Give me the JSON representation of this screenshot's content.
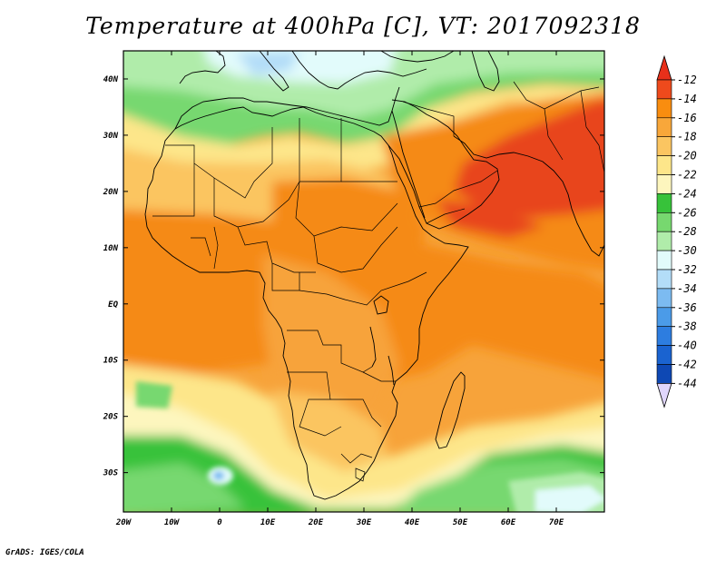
{
  "title": "Temperature at 400hPa [C], VT: 2017092318",
  "credit": "GrADS: IGES/COLA",
  "lat_labels": [
    "40N",
    "30N",
    "20N",
    "10N",
    "EQ",
    "10S",
    "20S",
    "30S"
  ],
  "lon_labels": [
    "20W",
    "10W",
    "0",
    "10E",
    "20E",
    "30E",
    "40E",
    "50E",
    "60E",
    "70E"
  ],
  "colorbar": {
    "labels": [
      "-12",
      "-14",
      "-16",
      "-18",
      "-20",
      "-22",
      "-24",
      "-26",
      "-28",
      "-30",
      "-32",
      "-34",
      "-36",
      "-38",
      "-40",
      "-42",
      "-44"
    ],
    "colors": [
      "#ee4a1c",
      "#f98d0f",
      "#f8a73a",
      "#fbc561",
      "#fde68a",
      "#fdf6be",
      "#37c23a",
      "#77d86f",
      "#b0ecaa",
      "#e2fbfb",
      "#b3ddf8",
      "#7cbbf1",
      "#4b9be8",
      "#2d7de0",
      "#1a63d0",
      "#0e48b4",
      "#0a2486"
    ],
    "top_color": "#e8301a",
    "bottom_color": "#e0d6fc"
  },
  "map": {
    "extent": {
      "lon": [
        -20,
        80
      ],
      "lat": [
        -37,
        45
      ]
    },
    "field_colors": {
      "hot": "#e8451e",
      "warm1": "#f58a12",
      "warm2": "#f7a33a",
      "warm3": "#fbc561",
      "warm4": "#fde68a",
      "cool0": "#fdf6be",
      "green1": "#37c23a",
      "green2": "#77d86f",
      "green3": "#b0ecaa",
      "cyan": "#e2fbfb",
      "blue1": "#b3ddf8",
      "blue2": "#7cbbf1"
    }
  }
}
